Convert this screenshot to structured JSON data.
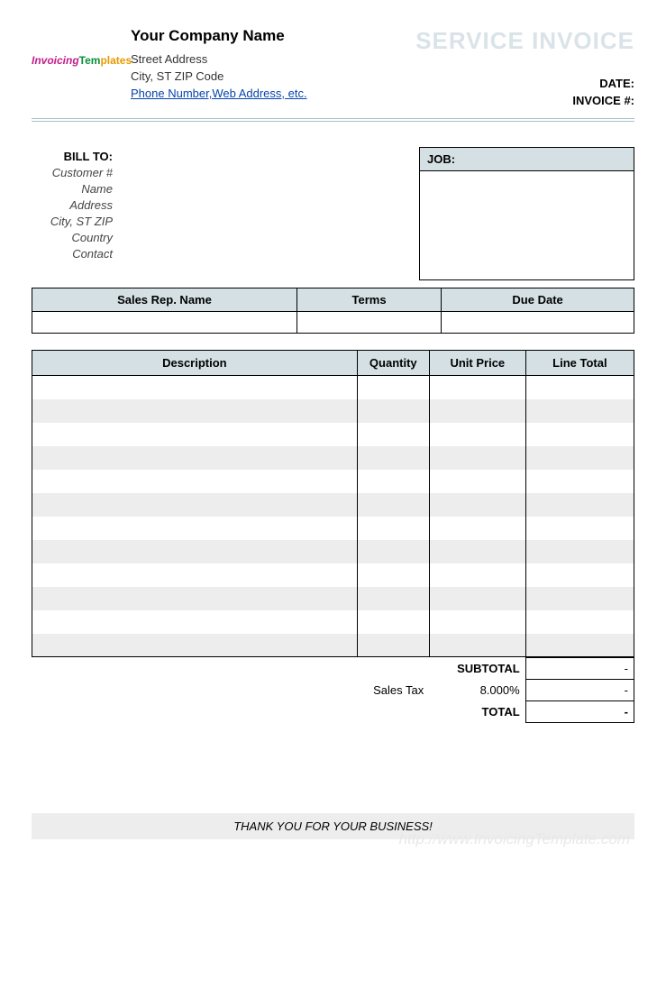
{
  "logo": {
    "part1": "Invoicing",
    "part2": "Tem",
    "part3": "plates"
  },
  "header": {
    "company_name": "Your Company Name",
    "street": "Street Address",
    "city_line": "City, ST  ZIP Code",
    "contact_link": "Phone Number,Web Address, etc.",
    "service_title": "SERVICE INVOICE",
    "date_label": "DATE:",
    "invoice_label": "INVOICE #:"
  },
  "bill": {
    "title": "BILL TO:",
    "labels": {
      "customer": "Customer #",
      "name": "Name",
      "address": "Address",
      "cityzip": "City, ST ZIP",
      "country": "Country",
      "contact": "Contact"
    }
  },
  "job": {
    "label": "JOB:"
  },
  "sales": {
    "columns": [
      "Sales Rep. Name",
      "Terms",
      "Due Date"
    ],
    "col_widths": [
      "44%",
      "24%",
      "32%"
    ]
  },
  "items": {
    "columns": [
      "Description",
      "Quantity",
      "Unit Price",
      "Line Total"
    ],
    "row_count": 12
  },
  "totals": {
    "subtotal_label": "SUBTOTAL",
    "tax_label": "Sales Tax",
    "tax_pct": "8.000%",
    "total_label": "TOTAL",
    "empty_val": "-"
  },
  "footer": {
    "thank": "THANK YOU FOR YOUR BUSINESS!",
    "watermark": "http://www.InvoicingTemplate.com"
  },
  "colors": {
    "header_bg": "#d4e0e4",
    "alt_row": "#ededed",
    "svc_title": "#d9e3e8",
    "divider": "#a8c5c5",
    "link": "#0645ad"
  }
}
